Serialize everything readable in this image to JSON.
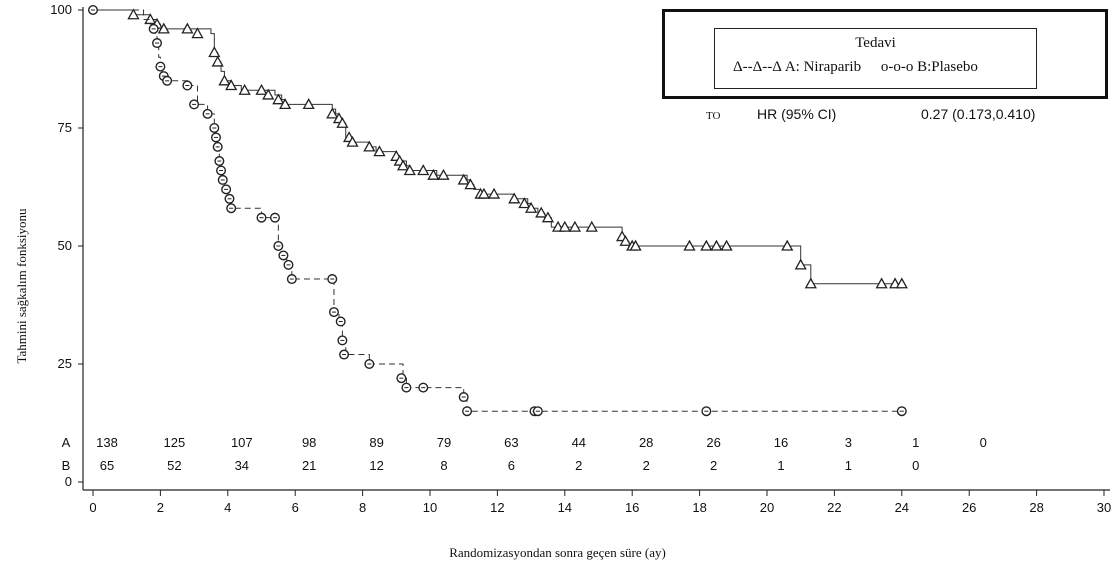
{
  "chart_data": {
    "type": "line",
    "subtype": "kaplan-meier",
    "xlabel": "Randomizasyondan sonra geçen süre (ay)",
    "ylabel": "Tahmini sağkalım fonksiyonu",
    "xlim": [
      0,
      30
    ],
    "ylim": [
      0,
      100
    ],
    "x_ticks": [
      0,
      2,
      4,
      6,
      8,
      10,
      12,
      14,
      16,
      18,
      20,
      22,
      24,
      26,
      28,
      30
    ],
    "y_ticks": [
      0,
      25,
      50,
      75,
      100
    ],
    "legend": {
      "title": "Tedavi",
      "entries": [
        "Δ--Δ--Δ  A: Niraparib",
        "o-o-o  B:Plasebo"
      ],
      "placement": "top-right"
    },
    "hr": {
      "prefix": "TO",
      "label": "HR (95% CI)",
      "value": "0.27 (0.173,0.410)"
    },
    "series": [
      {
        "name": "A: Niraparib",
        "marker": "triangle",
        "line": "solid",
        "steps": [
          [
            0,
            100
          ],
          [
            1.2,
            99
          ],
          [
            1.7,
            98
          ],
          [
            1.9,
            97
          ],
          [
            2,
            96
          ],
          [
            2.8,
            96
          ],
          [
            3.5,
            95
          ],
          [
            3.6,
            91
          ],
          [
            3.7,
            89
          ],
          [
            3.8,
            87
          ],
          [
            3.9,
            85
          ],
          [
            4.1,
            84
          ],
          [
            4.4,
            83
          ],
          [
            5,
            83
          ],
          [
            5.4,
            82
          ],
          [
            5.6,
            81
          ],
          [
            5.7,
            80
          ],
          [
            6.3,
            80
          ],
          [
            7.1,
            79
          ],
          [
            7.2,
            78
          ],
          [
            7.3,
            77
          ],
          [
            7.4,
            76
          ],
          [
            7.5,
            73
          ],
          [
            7.7,
            72
          ],
          [
            8.2,
            71
          ],
          [
            8.4,
            70
          ],
          [
            8.9,
            70
          ],
          [
            9,
            69
          ],
          [
            9.1,
            68
          ],
          [
            9.3,
            67
          ],
          [
            9.4,
            66
          ],
          [
            9.8,
            66
          ],
          [
            10.2,
            65
          ],
          [
            11,
            65
          ],
          [
            11.1,
            64
          ],
          [
            11.2,
            63
          ],
          [
            11.3,
            62
          ],
          [
            11.5,
            61
          ],
          [
            12,
            61
          ],
          [
            12.5,
            60
          ],
          [
            12.9,
            59
          ],
          [
            13,
            58
          ],
          [
            13.2,
            57
          ],
          [
            13.4,
            56
          ],
          [
            13.6,
            54
          ],
          [
            13.9,
            54
          ],
          [
            15.6,
            54
          ],
          [
            15.7,
            52
          ],
          [
            15.8,
            51
          ],
          [
            15.9,
            50
          ],
          [
            16,
            50
          ],
          [
            20.6,
            50
          ],
          [
            21,
            46
          ],
          [
            21.3,
            42
          ],
          [
            24,
            42
          ]
        ],
        "censored": [
          [
            1.2,
            99
          ],
          [
            1.7,
            98
          ],
          [
            1.9,
            97
          ],
          [
            2.1,
            96
          ],
          [
            2.8,
            96
          ],
          [
            3.1,
            95
          ],
          [
            3.6,
            91
          ],
          [
            3.7,
            89
          ],
          [
            3.9,
            85
          ],
          [
            4.1,
            84
          ],
          [
            4.5,
            83
          ],
          [
            5,
            83
          ],
          [
            5.2,
            82
          ],
          [
            5.5,
            81
          ],
          [
            5.7,
            80
          ],
          [
            6.4,
            80
          ],
          [
            7.1,
            78
          ],
          [
            7.3,
            77
          ],
          [
            7.4,
            76
          ],
          [
            7.6,
            73
          ],
          [
            7.7,
            72
          ],
          [
            8.2,
            71
          ],
          [
            8.5,
            70
          ],
          [
            9,
            69
          ],
          [
            9.1,
            68
          ],
          [
            9.2,
            67
          ],
          [
            9.4,
            66
          ],
          [
            9.8,
            66
          ],
          [
            10.1,
            65
          ],
          [
            10.4,
            65
          ],
          [
            11,
            64
          ],
          [
            11.2,
            63
          ],
          [
            11.5,
            61
          ],
          [
            11.6,
            61
          ],
          [
            11.9,
            61
          ],
          [
            12.5,
            60
          ],
          [
            12.8,
            59
          ],
          [
            13,
            58
          ],
          [
            13.3,
            57
          ],
          [
            13.5,
            56
          ],
          [
            13.8,
            54
          ],
          [
            14,
            54
          ],
          [
            14.3,
            54
          ],
          [
            14.8,
            54
          ],
          [
            15.7,
            52
          ],
          [
            15.8,
            51
          ],
          [
            16,
            50
          ],
          [
            16.1,
            50
          ],
          [
            17.7,
            50
          ],
          [
            18.2,
            50
          ],
          [
            18.5,
            50
          ],
          [
            18.8,
            50
          ],
          [
            20.6,
            50
          ],
          [
            21,
            46
          ],
          [
            21.3,
            42
          ],
          [
            23.4,
            42
          ],
          [
            23.8,
            42
          ],
          [
            24,
            42
          ]
        ]
      },
      {
        "name": "B:Plasebo",
        "marker": "circle",
        "line": "dashed",
        "steps": [
          [
            0,
            100
          ],
          [
            1.5,
            98
          ],
          [
            1.7,
            97
          ],
          [
            1.8,
            96
          ],
          [
            1.85,
            95
          ],
          [
            1.9,
            93
          ],
          [
            1.95,
            90
          ],
          [
            2,
            88
          ],
          [
            2.05,
            86
          ],
          [
            2.2,
            85
          ],
          [
            2.9,
            84
          ],
          [
            3.1,
            80
          ],
          [
            3.4,
            78
          ],
          [
            3.6,
            75
          ],
          [
            3.65,
            73
          ],
          [
            3.7,
            71
          ],
          [
            3.75,
            68
          ],
          [
            3.8,
            66
          ],
          [
            3.85,
            64
          ],
          [
            3.9,
            62
          ],
          [
            4,
            60
          ],
          [
            4.1,
            58
          ],
          [
            5,
            56
          ],
          [
            5.4,
            56
          ],
          [
            5.5,
            50
          ],
          [
            5.6,
            48
          ],
          [
            5.75,
            46
          ],
          [
            5.9,
            43
          ],
          [
            7.1,
            43
          ],
          [
            7.15,
            36
          ],
          [
            7.3,
            34
          ],
          [
            7.4,
            30
          ],
          [
            7.5,
            27
          ],
          [
            8.2,
            25
          ],
          [
            9.2,
            22
          ],
          [
            9.3,
            20
          ],
          [
            11,
            18
          ],
          [
            11.1,
            15
          ],
          [
            24,
            15
          ]
        ],
        "censored": [
          [
            0,
            100
          ],
          [
            1.8,
            96
          ],
          [
            1.9,
            93
          ],
          [
            2,
            88
          ],
          [
            2.1,
            86
          ],
          [
            2.2,
            85
          ],
          [
            2.8,
            84
          ],
          [
            3,
            80
          ],
          [
            3.4,
            78
          ],
          [
            3.6,
            75
          ],
          [
            3.65,
            73
          ],
          [
            3.7,
            71
          ],
          [
            3.75,
            68
          ],
          [
            3.8,
            66
          ],
          [
            3.85,
            64
          ],
          [
            3.95,
            62
          ],
          [
            4.05,
            60
          ],
          [
            4.1,
            58
          ],
          [
            5,
            56
          ],
          [
            5.4,
            56
          ],
          [
            5.5,
            50
          ],
          [
            5.65,
            48
          ],
          [
            5.8,
            46
          ],
          [
            5.9,
            43
          ],
          [
            7.1,
            43
          ],
          [
            7.15,
            36
          ],
          [
            7.35,
            34
          ],
          [
            7.4,
            30
          ],
          [
            7.45,
            27
          ],
          [
            8.2,
            25
          ],
          [
            9.15,
            22
          ],
          [
            9.3,
            20
          ],
          [
            9.8,
            20
          ],
          [
            11,
            18
          ],
          [
            11.1,
            15
          ],
          [
            13.1,
            15
          ],
          [
            13.2,
            15
          ],
          [
            18.2,
            15
          ],
          [
            24,
            15
          ]
        ]
      }
    ],
    "at_risk": {
      "times": [
        0,
        2,
        4,
        6,
        8,
        10,
        12,
        14,
        16,
        18,
        20,
        22,
        24,
        26
      ],
      "rows": [
        {
          "label": "A",
          "counts": [
            "138",
            "125",
            "107",
            "98",
            "89",
            "79",
            "63",
            "44",
            "28",
            "26",
            "16",
            "3",
            "1",
            "0"
          ]
        },
        {
          "label": "B",
          "counts": [
            "65",
            "52",
            "34",
            "21",
            "12",
            "8",
            "6",
            "2",
            "2",
            "2",
            "1",
            "1",
            "0",
            ""
          ]
        }
      ]
    }
  }
}
